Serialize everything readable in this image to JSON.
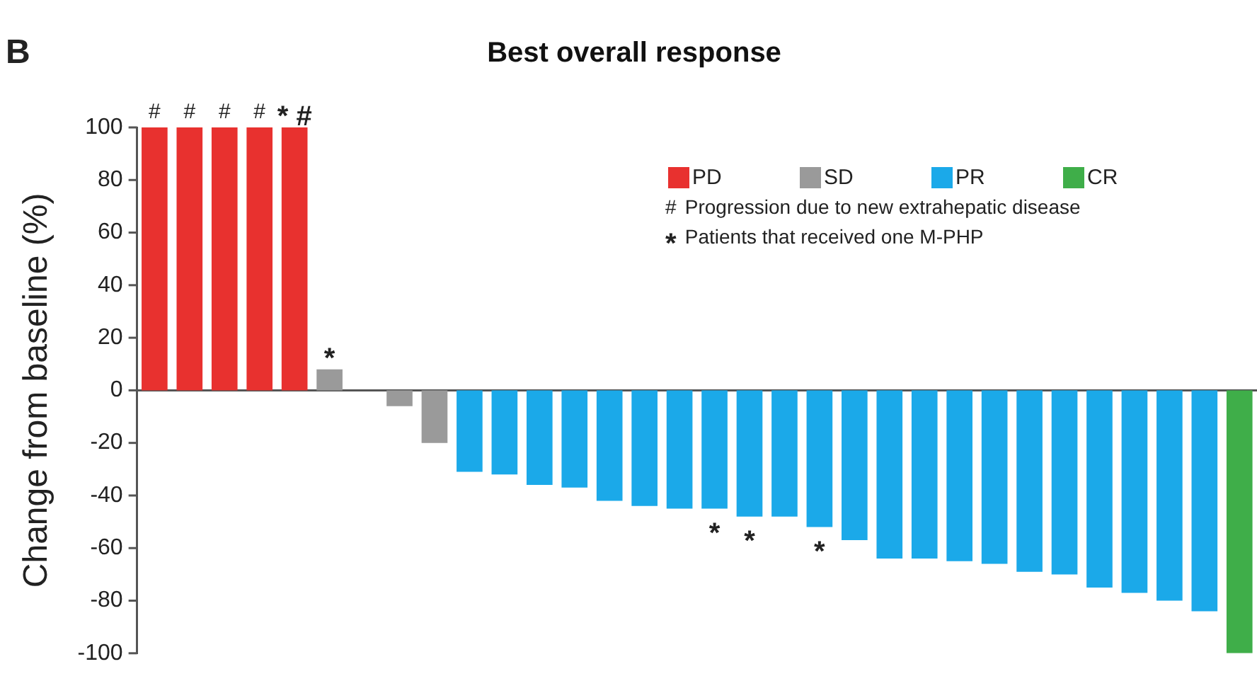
{
  "chart_data": {
    "type": "bar",
    "title": "Best overall response",
    "ylabel": "Change from baseline (%)",
    "annotations": [
      "B",
      "# Progression due to new extrahepatic disease",
      "* Patients that received one M-PHP"
    ],
    "categories": [
      null,
      null,
      null,
      null,
      null,
      null,
      null,
      null,
      null,
      null,
      null,
      null,
      null,
      null,
      null,
      null,
      null,
      null,
      null,
      null,
      null,
      null,
      null,
      null,
      null,
      null,
      null,
      null,
      null,
      null,
      null,
      null
    ],
    "series": [
      {
        "name": "PD",
        "color": "#e8312f",
        "values": [
          100,
          100,
          100,
          100,
          100,
          null,
          null,
          null,
          null,
          null,
          null,
          null,
          null,
          null,
          null,
          null,
          null,
          null,
          null,
          null,
          null,
          null,
          null,
          null,
          null,
          null,
          null,
          null,
          null,
          null,
          null,
          null
        ],
        "value_labels": [
          "#",
          "#",
          "#",
          "#",
          "* #",
          null,
          null,
          null,
          null,
          null,
          null,
          null,
          null,
          null,
          null,
          null,
          null,
          null,
          null,
          null,
          null,
          null,
          null,
          null,
          null,
          null,
          null,
          null,
          null,
          null,
          null,
          null
        ]
      },
      {
        "name": "SD",
        "color": "#9a9a9a",
        "values": [
          null,
          null,
          null,
          null,
          null,
          8,
          null,
          -6,
          -20,
          null,
          null,
          null,
          null,
          null,
          null,
          null,
          null,
          null,
          null,
          null,
          null,
          null,
          null,
          null,
          null,
          null,
          null,
          null,
          null,
          null,
          null,
          null
        ],
        "value_labels": [
          null,
          null,
          null,
          null,
          null,
          "*",
          null,
          null,
          null,
          null,
          null,
          null,
          null,
          null,
          null,
          null,
          null,
          null,
          null,
          null,
          null,
          null,
          null,
          null,
          null,
          null,
          null,
          null,
          null,
          null,
          null,
          null
        ]
      },
      {
        "name": "PR",
        "color": "#1ba9e9",
        "values": [
          null,
          null,
          null,
          null,
          null,
          null,
          null,
          null,
          null,
          -31,
          -32,
          -36,
          -37,
          -42,
          -44,
          -45,
          -45,
          -48,
          -48,
          -52,
          -57,
          -64,
          -64,
          -65,
          -66,
          -69,
          -70,
          -75,
          -77,
          -80,
          -84,
          null
        ],
        "value_labels": [
          null,
          null,
          null,
          null,
          null,
          null,
          null,
          null,
          null,
          null,
          null,
          null,
          null,
          null,
          null,
          null,
          "*",
          "*",
          null,
          "*",
          null,
          null,
          null,
          null,
          null,
          null,
          null,
          null,
          null,
          null,
          null,
          null
        ]
      },
      {
        "name": "CR",
        "color": "#3fae49",
        "values": [
          null,
          null,
          null,
          null,
          null,
          null,
          null,
          null,
          null,
          null,
          null,
          null,
          null,
          null,
          null,
          null,
          null,
          null,
          null,
          null,
          null,
          null,
          null,
          null,
          null,
          null,
          null,
          null,
          null,
          null,
          null,
          -100
        ]
      }
    ],
    "ylim": [
      -100,
      100
    ],
    "yticks": [
      -100,
      -80,
      -60,
      -40,
      -20,
      0,
      20,
      40,
      60,
      80,
      100
    ],
    "legend": "top right",
    "tick_labels": "y"
  }
}
